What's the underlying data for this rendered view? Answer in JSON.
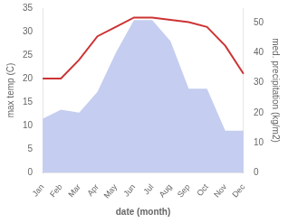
{
  "chart_data": {
    "type": "line",
    "categories": [
      "Jan",
      "Feb",
      "Mar",
      "Apr",
      "May",
      "Jun",
      "Jul",
      "Aug",
      "Sep",
      "Oct",
      "Nov",
      "Dec"
    ],
    "xlabel": "date (month)",
    "ylabel": "max temp (C)",
    "y2label": "med. precipitation (kg/m2)",
    "series": [
      {
        "type": "area",
        "axis": "y2",
        "color": "#c5cdf0",
        "values": [
          18,
          21,
          20,
          27,
          40,
          51,
          51,
          44,
          28,
          28,
          14,
          14
        ]
      },
      {
        "type": "line",
        "axis": "y",
        "color": "#cc3333",
        "values": [
          20,
          20,
          24,
          29,
          31,
          33,
          33,
          32.5,
          32,
          31,
          27,
          21
        ]
      }
    ],
    "ylim": [
      0,
      35
    ],
    "yticks": [
      0,
      5,
      10,
      15,
      20,
      25,
      30,
      35
    ],
    "y2lim": [
      0,
      55
    ],
    "y2ticks": [
      0,
      10,
      20,
      30,
      40,
      50
    ],
    "grid": false
  }
}
